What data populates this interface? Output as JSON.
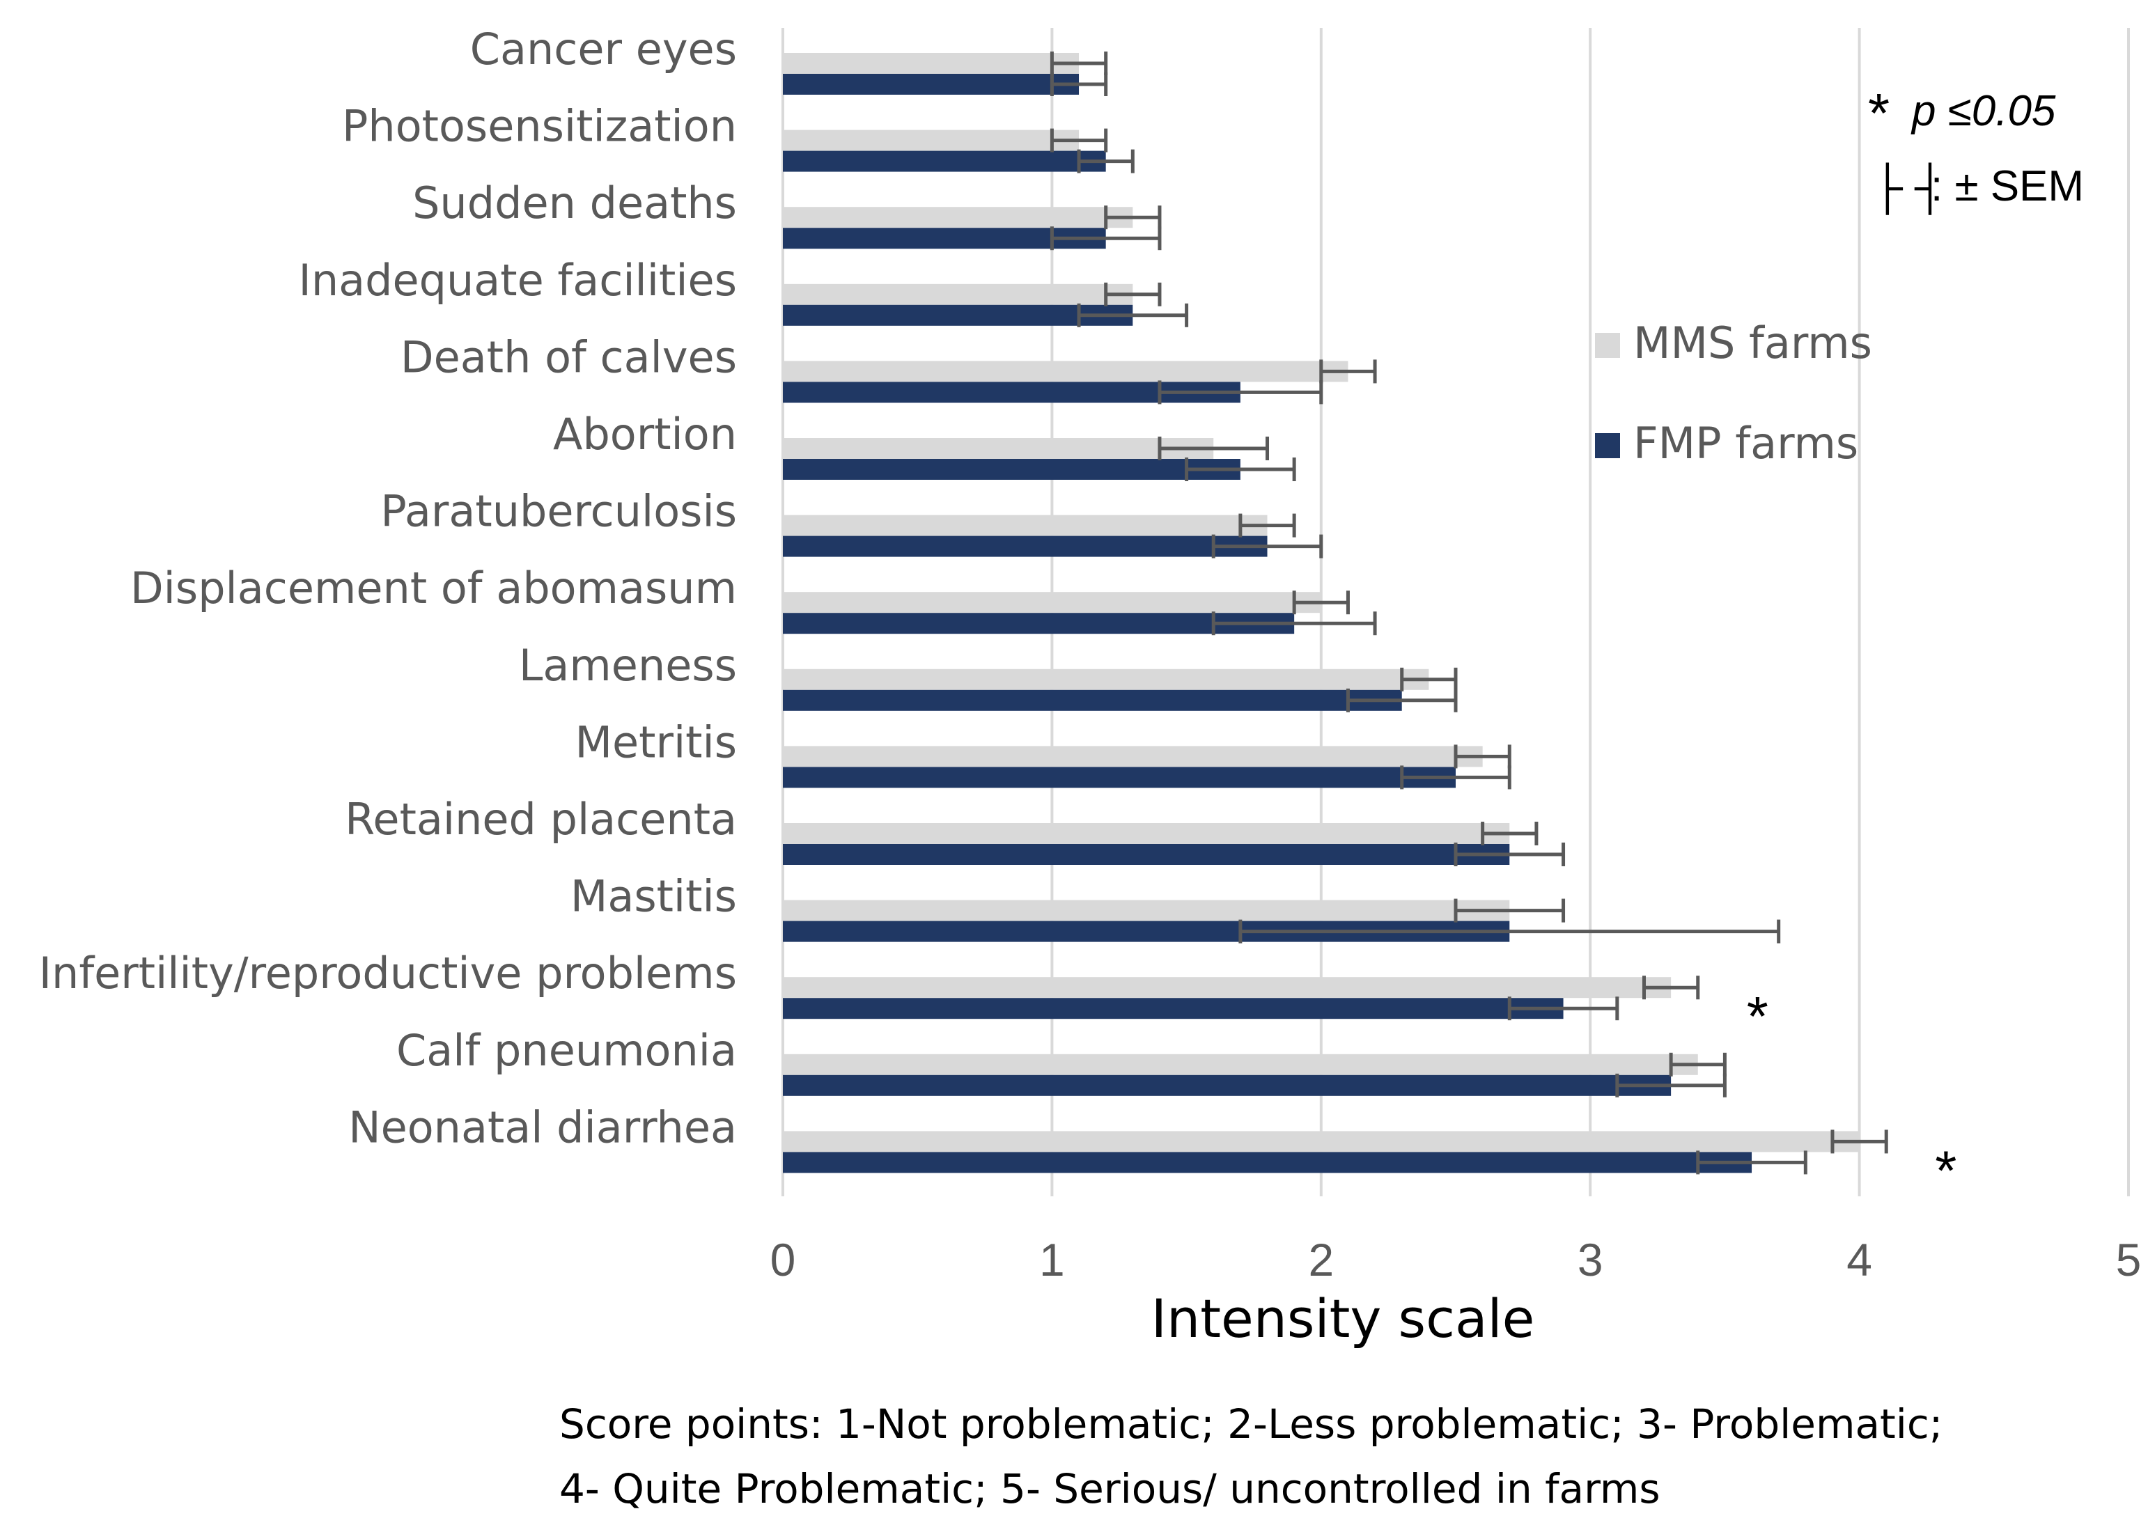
{
  "chart_data": {
    "type": "bar",
    "orientation": "horizontal",
    "title": "",
    "xlabel": "Intensity scale",
    "ylabel": "",
    "xlim": [
      0,
      5
    ],
    "xticks": [
      "0",
      "1",
      "2",
      "3",
      "4",
      "5"
    ],
    "grid": "vertical",
    "categories": [
      "Cancer eyes",
      "Photosensitization",
      "Sudden deaths",
      "Inadequate facilities",
      "Death of calves",
      "Abortion",
      "Paratuberculosis",
      "Displacement of abomasum",
      "Lameness",
      "Metritis",
      "Retained placenta",
      "Mastitis",
      "Infertility/reproductive problems",
      "Calf pneumonia",
      "Neonatal diarrhea"
    ],
    "series": [
      {
        "name": "MMS farms",
        "color": "#d9d9d9",
        "values": [
          1.1,
          1.1,
          1.3,
          1.3,
          2.1,
          1.6,
          1.8,
          2.0,
          2.4,
          2.6,
          2.7,
          2.7,
          3.3,
          3.4,
          4.0
        ],
        "sem": [
          0.1,
          0.1,
          0.1,
          0.1,
          0.1,
          0.2,
          0.1,
          0.1,
          0.1,
          0.1,
          0.1,
          0.2,
          0.1,
          0.1,
          0.1
        ]
      },
      {
        "name": "FMP farms",
        "color": "#203864",
        "values": [
          1.1,
          1.2,
          1.2,
          1.3,
          1.7,
          1.7,
          1.8,
          1.9,
          2.3,
          2.5,
          2.7,
          2.7,
          2.9,
          3.3,
          3.6
        ],
        "sem": [
          0.1,
          0.1,
          0.2,
          0.2,
          0.3,
          0.2,
          0.2,
          0.3,
          0.2,
          0.2,
          0.2,
          1.0,
          0.2,
          0.2,
          0.2
        ]
      }
    ],
    "significant": [
      "Infertility/reproductive problems",
      "Neonatal diarrhea"
    ],
    "significance_marker": "*",
    "legend": {
      "position": "right",
      "entries": [
        "MMS farms",
        "FMP farms"
      ]
    },
    "annotations": {
      "p_star": "*",
      "p_label": "p ≤0.05",
      "sem_symbol": "├ ┤",
      "sem_label": ": ± SEM"
    },
    "footnote": [
      "Score points: 1-Not problematic; 2-Less problematic; 3- Problematic;",
      "4- Quite Problematic; 5- Serious/ uncontrolled in farms"
    ]
  }
}
